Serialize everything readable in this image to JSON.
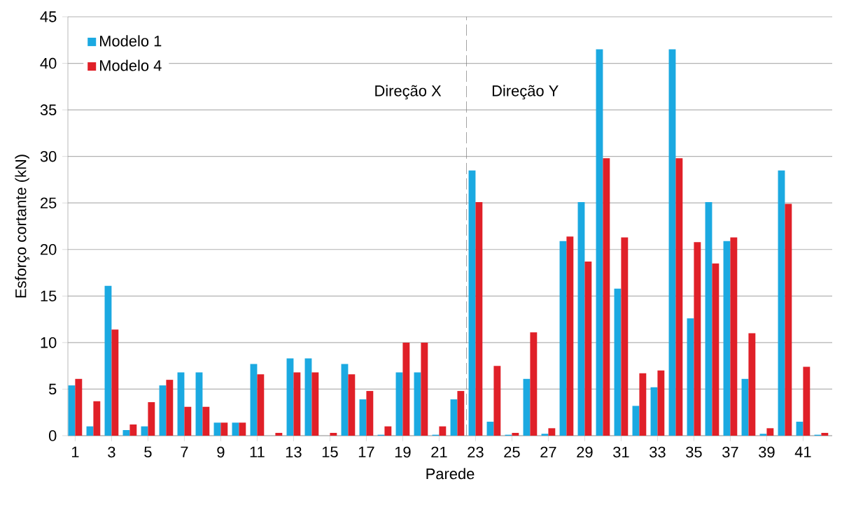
{
  "chart_data": {
    "type": "bar",
    "xlabel": "Parede",
    "ylabel": "Esforço cortante (kN)",
    "x": [
      1,
      2,
      3,
      4,
      5,
      6,
      7,
      8,
      9,
      10,
      11,
      12,
      13,
      14,
      15,
      16,
      17,
      18,
      19,
      20,
      21,
      22,
      23,
      24,
      25,
      26,
      27,
      28,
      29,
      30,
      31,
      32,
      33,
      34,
      35,
      36,
      37,
      38,
      39,
      40,
      41,
      42
    ],
    "xlim": [
      0.6,
      42.6
    ],
    "xticks": [
      1,
      3,
      5,
      7,
      9,
      11,
      13,
      15,
      17,
      19,
      21,
      23,
      25,
      27,
      29,
      31,
      33,
      35,
      37,
      39,
      41
    ],
    "ylim": [
      0,
      45
    ],
    "yticks": [
      0,
      5,
      10,
      15,
      20,
      25,
      30,
      35,
      40,
      45
    ],
    "grid": "y",
    "legend": "top left",
    "series": [
      {
        "name": "Modelo 1",
        "color": "#1ba9e1",
        "values": [
          5.4,
          1.0,
          16.1,
          0.6,
          1.0,
          5.4,
          6.8,
          6.8,
          1.4,
          1.4,
          7.7,
          0,
          8.3,
          8.3,
          0,
          7.7,
          3.9,
          0.1,
          6.8,
          6.8,
          0.1,
          3.9,
          28.5,
          1.5,
          0.1,
          6.1,
          0.2,
          20.9,
          25.1,
          41.5,
          15.8,
          3.2,
          5.2,
          41.5,
          12.6,
          25.1,
          20.9,
          6.1,
          0.2,
          28.5,
          1.5,
          0.1
        ]
      },
      {
        "name": "Modelo 4",
        "color": "#e02028",
        "values": [
          6.1,
          3.7,
          11.4,
          1.2,
          3.6,
          6.0,
          3.1,
          3.1,
          1.4,
          1.4,
          6.6,
          0.3,
          6.8,
          6.8,
          0.3,
          6.6,
          4.8,
          1.0,
          10.0,
          10.0,
          1.0,
          4.8,
          25.1,
          7.5,
          0.3,
          11.1,
          0.8,
          21.4,
          18.7,
          29.8,
          21.3,
          6.7,
          7.0,
          29.8,
          20.8,
          18.5,
          21.3,
          11.0,
          0.8,
          24.9,
          7.4,
          0.3
        ]
      }
    ],
    "ref_lines": [
      {
        "axis": "x",
        "value": 22.5,
        "color": "#808080",
        "line_style": "dashed"
      }
    ],
    "annotations": [
      "Direção X",
      "Direção Y"
    ]
  }
}
